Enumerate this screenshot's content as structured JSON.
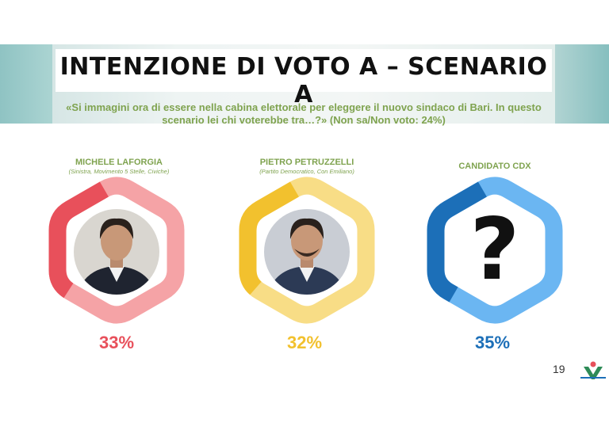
{
  "title": "INTENZIONE DI VOTO A – SCENARIO A",
  "question": "«Si immagini ora di essere nella cabina elettorale per eleggere il nuovo sindaco di Bari. In questo scenario lei chi voterebbe tra…?» (Non sa/Non voto: 24%)",
  "page_number": "19",
  "chart_data": {
    "type": "pie",
    "title": "INTENZIONE DI VOTO A – SCENARIO A",
    "categories": [
      "MICHELE LAFORGIA",
      "PIETRO PETRUZZELLI",
      "CANDIDATO CDX"
    ],
    "values": [
      33,
      32,
      35
    ],
    "labels": [
      "33%",
      "32%",
      "35%"
    ],
    "candidates": [
      {
        "name": "MICHELE LAFORGIA",
        "subtitle": "(Sinistra, Movimento 5 Stelle, Civiche)",
        "value": 33,
        "label": "33%",
        "color": "#e8505b",
        "light": "#f5a3a6",
        "icon": "portrait-icon"
      },
      {
        "name": "PIETRO PETRUZZELLI",
        "subtitle": "(Partito Democratico, Con Emiliano)",
        "value": 32,
        "label": "32%",
        "color": "#f2c12e",
        "light": "#f8dd86",
        "icon": "portrait-icon"
      },
      {
        "name": "CANDIDATO CDX",
        "subtitle": "",
        "value": 35,
        "label": "35%",
        "color": "#1c6fb8",
        "light": "#6bb6f2",
        "icon": "question-mark-icon"
      }
    ]
  }
}
